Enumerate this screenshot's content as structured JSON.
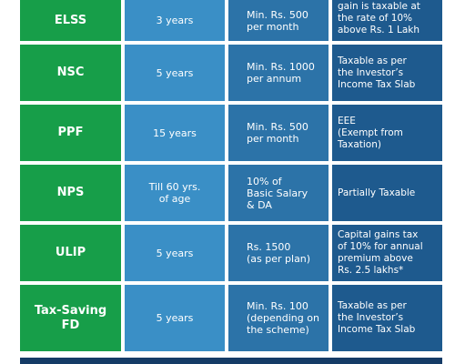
{
  "rows": [
    {
      "name": "ELSS",
      "period": "3 years",
      "investment": "Min. Rs. 500\nper month",
      "tax": "gain is taxable at\nthe rate of 10%\nabove Rs. 1 Lakh"
    },
    {
      "name": "NSC",
      "period": "5 years",
      "investment": "Min. Rs. 1000\nper annum",
      "tax": "Taxable as per\nthe Investor’s\nIncome Tax Slab"
    },
    {
      "name": "PPF",
      "period": "15 years",
      "investment": "Min. Rs. 500\nper month",
      "tax": "EEE\n(Exempt from\nTaxation)"
    },
    {
      "name": "NPS",
      "period": "Till 60 yrs.\nof age",
      "investment": "10% of\nBasic Salary\n& DA",
      "tax": "Partially Taxable"
    },
    {
      "name": "ULIP",
      "period": "5 years",
      "investment": "Rs. 1500\n(as per plan)",
      "tax": "Capital gains tax\nof 10% for annual\npremium above\nRs. 2.5 lakhs*"
    },
    {
      "name": "Tax-Saving\nFD",
      "period": "5 years",
      "investment": "Min. Rs. 100\n(depending on\nthe scheme)",
      "tax": "Taxable as per\nthe Investor’s\nIncome Tax Slab"
    }
  ],
  "colors": {
    "name_col": "#179e49",
    "period_col": "#3a8fc6",
    "investment_col": "#2c73a8",
    "tax_col": "#1e5a8e",
    "footer": "#153b66"
  }
}
